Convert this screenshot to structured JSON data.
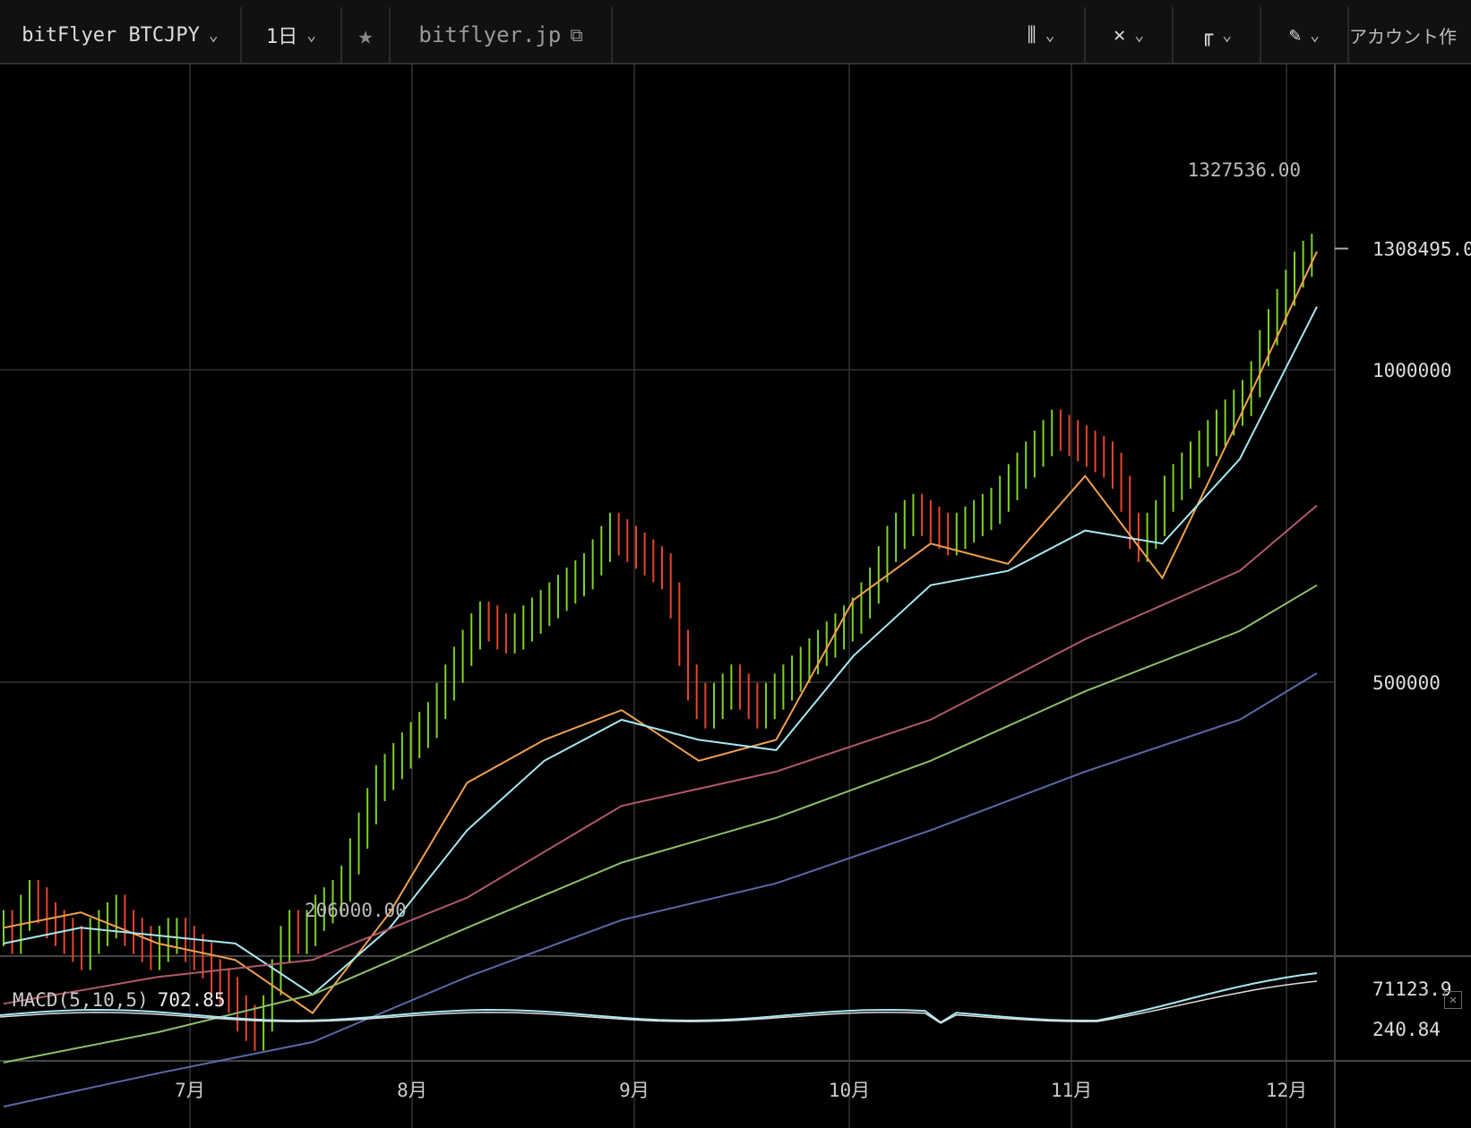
{
  "toolbar": {
    "symbol": "bitFlyer BTCJPY",
    "interval": "1日",
    "url": "bitflyer.jp",
    "account_text": "アカウント作"
  },
  "colors": {
    "background": "#000000",
    "up": "#7ed321",
    "down": "#e8452c",
    "ma_orange": "#f0a050",
    "ma_cyan": "#a8e8f0",
    "ma_red": "#b05a6a",
    "ma_green": "#8fbf6a",
    "ma_blue": "#5a6aa8"
  },
  "chart_data": {
    "type": "line",
    "title": "",
    "x_ticks": [
      "7月",
      "8月",
      "9月",
      "10月",
      "11月",
      "12月"
    ],
    "y_ticks": [
      500000,
      1000000
    ],
    "y_tick_labels": [
      "500000",
      "1000000"
    ],
    "last_price_label": "1308495.0",
    "high_annotation": "1327536.00",
    "low_annotation": "206000.00",
    "series": [
      {
        "color_key": "ma_orange",
        "values": [
          [
            0,
            290000
          ],
          [
            10,
            300000
          ],
          [
            20,
            280000
          ],
          [
            30,
            270000
          ],
          [
            40,
            240000
          ],
          [
            50,
            300000
          ],
          [
            60,
            400000
          ],
          [
            70,
            440000
          ],
          [
            80,
            470000
          ],
          [
            90,
            420000
          ],
          [
            100,
            440000
          ],
          [
            110,
            600000
          ],
          [
            120,
            680000
          ],
          [
            130,
            650000
          ],
          [
            140,
            790000
          ],
          [
            150,
            630000
          ],
          [
            160,
            900000
          ],
          [
            170,
            1300000
          ]
        ]
      },
      {
        "color_key": "ma_cyan",
        "values": [
          [
            0,
            280000
          ],
          [
            10,
            290000
          ],
          [
            20,
            285000
          ],
          [
            30,
            280000
          ],
          [
            40,
            250000
          ],
          [
            50,
            290000
          ],
          [
            60,
            360000
          ],
          [
            70,
            420000
          ],
          [
            80,
            460000
          ],
          [
            90,
            440000
          ],
          [
            100,
            430000
          ],
          [
            110,
            530000
          ],
          [
            120,
            620000
          ],
          [
            130,
            640000
          ],
          [
            140,
            700000
          ],
          [
            150,
            680000
          ],
          [
            160,
            820000
          ],
          [
            170,
            1150000
          ]
        ]
      },
      {
        "color_key": "ma_red",
        "values": [
          [
            0,
            245000
          ],
          [
            20,
            260000
          ],
          [
            40,
            270000
          ],
          [
            60,
            310000
          ],
          [
            80,
            380000
          ],
          [
            100,
            410000
          ],
          [
            120,
            460000
          ],
          [
            140,
            550000
          ],
          [
            160,
            640000
          ],
          [
            170,
            740000
          ]
        ]
      },
      {
        "color_key": "ma_green",
        "values": [
          [
            0,
            215000
          ],
          [
            20,
            230000
          ],
          [
            40,
            250000
          ],
          [
            60,
            290000
          ],
          [
            80,
            335000
          ],
          [
            100,
            370000
          ],
          [
            120,
            420000
          ],
          [
            140,
            490000
          ],
          [
            160,
            560000
          ],
          [
            170,
            620000
          ]
        ]
      },
      {
        "color_key": "ma_blue",
        "values": [
          [
            0,
            195000
          ],
          [
            20,
            210000
          ],
          [
            40,
            225000
          ],
          [
            60,
            260000
          ],
          [
            80,
            295000
          ],
          [
            100,
            320000
          ],
          [
            120,
            360000
          ],
          [
            140,
            410000
          ],
          [
            160,
            460000
          ],
          [
            170,
            510000
          ]
        ]
      }
    ],
    "candles_close": [
      290,
      285,
      300,
      310,
      305,
      295,
      290,
      285,
      280,
      275,
      285,
      290,
      295,
      300,
      290,
      285,
      280,
      275,
      280,
      285,
      285,
      280,
      275,
      270,
      260,
      255,
      250,
      240,
      235,
      230,
      240,
      260,
      280,
      290,
      285,
      290,
      300,
      305,
      310,
      320,
      340,
      360,
      380,
      400,
      410,
      420,
      430,
      440,
      450,
      460,
      480,
      500,
      520,
      540,
      560,
      575,
      570,
      560,
      555,
      560,
      570,
      580,
      590,
      600,
      610,
      620,
      630,
      640,
      660,
      680,
      700,
      690,
      680,
      670,
      660,
      650,
      640,
      600,
      540,
      500,
      480,
      470,
      480,
      490,
      500,
      490,
      480,
      470,
      480,
      490,
      500,
      510,
      520,
      530,
      540,
      550,
      560,
      570,
      580,
      600,
      620,
      650,
      680,
      700,
      720,
      730,
      720,
      710,
      700,
      690,
      700,
      710,
      720,
      730,
      740,
      760,
      780,
      800,
      820,
      840,
      860,
      880,
      870,
      860,
      850,
      840,
      830,
      820,
      800,
      760,
      700,
      680,
      700,
      720,
      760,
      780,
      800,
      820,
      840,
      860,
      880,
      900,
      920,
      940,
      980,
      1050,
      1100,
      1150,
      1200,
      1250,
      1280,
      1300
    ]
  },
  "macd": {
    "label": "MACD(5,10,5)",
    "value": "702.85",
    "right_top": "71123.9",
    "right_bottom": "240.84",
    "close_symbol": "✕"
  }
}
